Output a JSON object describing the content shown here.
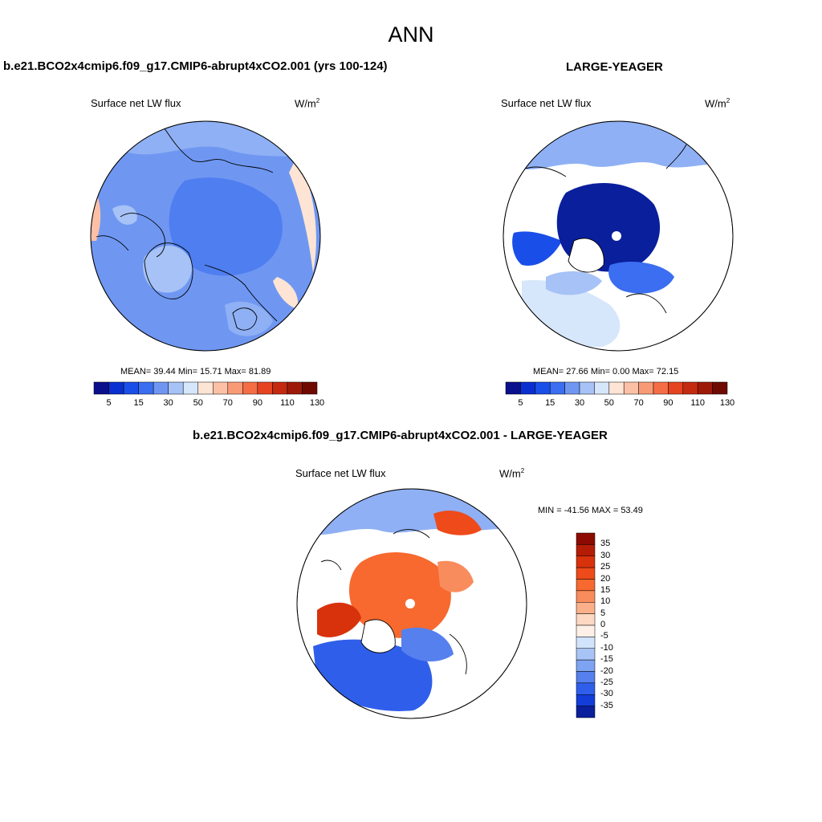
{
  "page_title": "ANN",
  "panels": [
    {
      "case_title": "b.e21.BCO2x4cmip6.f09_g17.CMIP6-abrupt4xCO2.001 (yrs 100-124)",
      "variable": "Surface net LW flux",
      "units": "W/m",
      "units_sup": "2",
      "stats": "MEAN=  39.44  Min=  15.71  Max=  81.89"
    },
    {
      "case_title": "LARGE-YEAGER",
      "variable": "Surface net LW flux",
      "units": "W/m",
      "units_sup": "2",
      "stats": "MEAN=  27.66  Min=   0.00  Max=  72.15"
    },
    {
      "case_title": "b.e21.BCO2x4cmip6.f09_g17.CMIP6-abrupt4xCO2.001 - LARGE-YEAGER",
      "variable": "Surface net LW flux",
      "units": "W/m",
      "units_sup": "2",
      "stats": "MIN = -41.56 MAX =  53.49"
    }
  ],
  "chart_data": [
    {
      "type": "heatmap",
      "title": "b.e21.BCO2x4cmip6.f09_g17.CMIP6-abrupt4xCO2.001 (yrs 100-124)",
      "projection": "north polar stereographic",
      "variable": "Surface net LW flux",
      "mean": 39.44,
      "min": 15.71,
      "max": 81.89,
      "colorbar_labels": [
        "5",
        "15",
        "30",
        "50",
        "70",
        "90",
        "110",
        "130"
      ],
      "colorbar_colors": [
        "#0a0f8c",
        "#0a2fd0",
        "#1a4ee8",
        "#3b6ef0",
        "#6f97f2",
        "#a6c2f6",
        "#d6e6fb",
        "#fde4d4",
        "#fcc0a6",
        "#f99a76",
        "#f56d45",
        "#e64420",
        "#c42a10",
        "#9e1a08",
        "#6e0a02"
      ],
      "legend_placement": "bottom"
    },
    {
      "type": "heatmap",
      "title": "LARGE-YEAGER",
      "projection": "north polar stereographic",
      "variable": "Surface net LW flux",
      "mean": 27.66,
      "min": 0.0,
      "max": 72.15,
      "colorbar_labels": [
        "5",
        "15",
        "30",
        "50",
        "70",
        "90",
        "110",
        "130"
      ],
      "colorbar_colors": [
        "#0a0f8c",
        "#0a2fd0",
        "#1a4ee8",
        "#3b6ef0",
        "#6f97f2",
        "#a6c2f6",
        "#d6e6fb",
        "#fde4d4",
        "#fcc0a6",
        "#f99a76",
        "#f56d45",
        "#e64420",
        "#c42a10",
        "#9e1a08",
        "#6e0a02"
      ],
      "legend_placement": "bottom"
    },
    {
      "type": "heatmap",
      "title": "b.e21.BCO2x4cmip6.f09_g17.CMIP6-abrupt4xCO2.001 - LARGE-YEAGER",
      "projection": "north polar stereographic",
      "variable": "Surface net LW flux",
      "min": -41.56,
      "max": 53.49,
      "colorbar_labels": [
        "35",
        "30",
        "25",
        "20",
        "15",
        "10",
        "5",
        "0",
        "-5",
        "-10",
        "-15",
        "-20",
        "-25",
        "-30",
        "-35"
      ],
      "colorbar_colors": [
        "#8c0a02",
        "#b51c06",
        "#d8320c",
        "#ee4a1a",
        "#f7692f",
        "#f98c5c",
        "#fbb08a",
        "#fdd8c2",
        "#fdf0e6",
        "#d2e4fb",
        "#a8c4f6",
        "#7ea3f2",
        "#5580ee",
        "#2f5fea",
        "#123dd8",
        "#0a1f9c"
      ],
      "legend_placement": "right"
    }
  ]
}
